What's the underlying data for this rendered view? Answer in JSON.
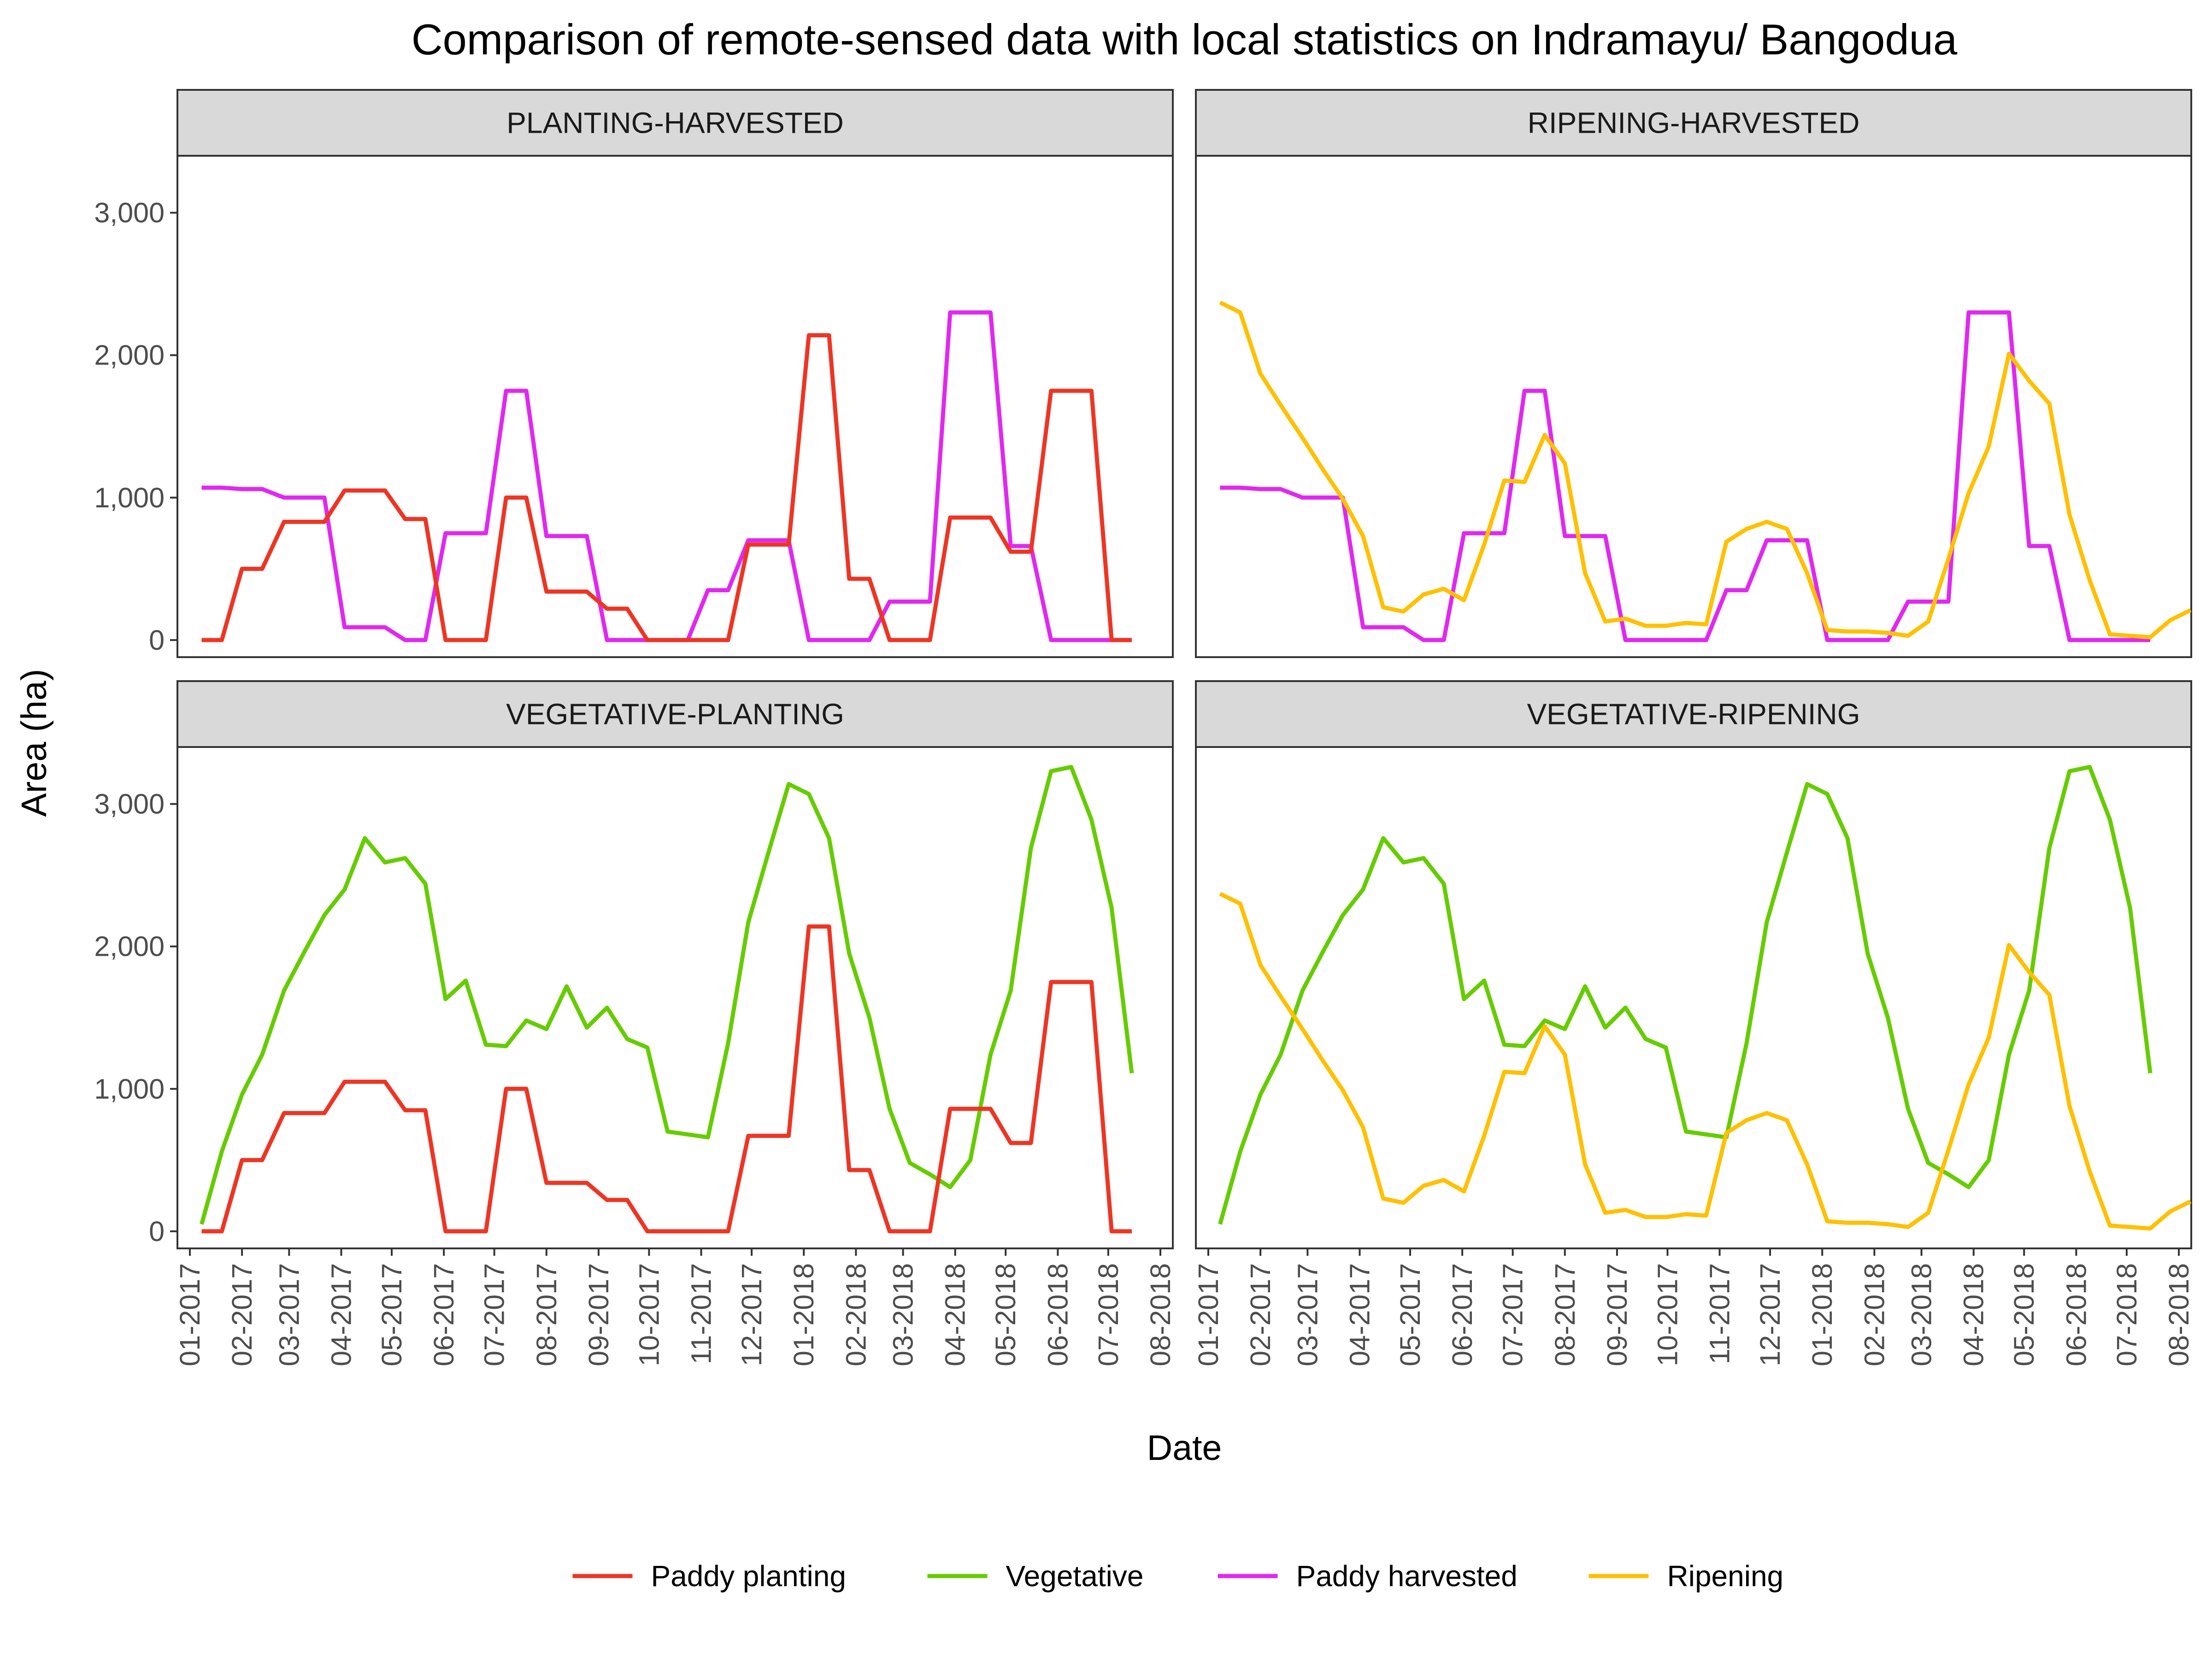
{
  "chart_data": {
    "type": "line",
    "title": "Comparison of remote-sensed data with local statistics on Indramayu/ Bangodua",
    "xlabel": "Date",
    "ylabel": "Area (ha)",
    "ylim": [
      -120,
      3400
    ],
    "yticks": [
      0,
      1000,
      2000,
      3000
    ],
    "ytick_labels": [
      "0",
      "1,000",
      "2,000",
      "3,000"
    ],
    "xticks": [
      "01-2017",
      "02-2017",
      "03-2017",
      "04-2017",
      "05-2017",
      "06-2017",
      "07-2017",
      "08-2017",
      "09-2017",
      "10-2017",
      "11-2017",
      "12-2017",
      "01-2018",
      "02-2018",
      "03-2018",
      "04-2018",
      "05-2018",
      "06-2018",
      "07-2018",
      "08-2018"
    ],
    "x_start": "2017-01-01",
    "x_end": "2018-08-01",
    "grid": false,
    "legend_position": "bottom",
    "colors": {
      "Paddy planting": "#ee3524",
      "Vegetative": "#66cc00",
      "Paddy harvested": "#e028f0",
      "Ripening": "#ffc000"
    },
    "legend": [
      "Paddy planting",
      "Vegetative",
      "Paddy harvested",
      "Ripening"
    ],
    "series_data": {
      "Paddy planting": [
        [
          "2017-01-08",
          0
        ],
        [
          "2017-01-20",
          0
        ],
        [
          "2017-02-01",
          500
        ],
        [
          "2017-02-13",
          500
        ],
        [
          "2017-02-26",
          830
        ],
        [
          "2017-03-10",
          830
        ],
        [
          "2017-03-22",
          830
        ],
        [
          "2017-04-03",
          1050
        ],
        [
          "2017-04-15",
          1050
        ],
        [
          "2017-04-27",
          1050
        ],
        [
          "2017-05-09",
          850
        ],
        [
          "2017-05-21",
          850
        ],
        [
          "2017-06-02",
          0
        ],
        [
          "2017-06-14",
          0
        ],
        [
          "2017-06-26",
          0
        ],
        [
          "2017-07-08",
          1000
        ],
        [
          "2017-07-20",
          1000
        ],
        [
          "2017-08-01",
          340
        ],
        [
          "2017-08-13",
          340
        ],
        [
          "2017-08-25",
          340
        ],
        [
          "2017-09-06",
          220
        ],
        [
          "2017-09-18",
          220
        ],
        [
          "2017-09-30",
          0
        ],
        [
          "2017-10-12",
          0
        ],
        [
          "2017-10-24",
          0
        ],
        [
          "2017-11-05",
          0
        ],
        [
          "2017-11-17",
          0
        ],
        [
          "2017-11-29",
          670
        ],
        [
          "2017-12-11",
          670
        ],
        [
          "2017-12-23",
          670
        ],
        [
          "2018-01-04",
          2140
        ],
        [
          "2018-01-16",
          2140
        ],
        [
          "2018-01-28",
          430
        ],
        [
          "2018-02-09",
          430
        ],
        [
          "2018-02-21",
          0
        ],
        [
          "2018-03-05",
          0
        ],
        [
          "2018-03-17",
          0
        ],
        [
          "2018-03-29",
          860
        ],
        [
          "2018-04-10",
          860
        ],
        [
          "2018-04-22",
          860
        ],
        [
          "2018-05-04",
          620
        ],
        [
          "2018-05-16",
          620
        ],
        [
          "2018-05-28",
          1750
        ],
        [
          "2018-06-09",
          1750
        ],
        [
          "2018-06-21",
          1750
        ],
        [
          "2018-07-03",
          0
        ],
        [
          "2018-07-15",
          0
        ]
      ],
      "Vegetative": [
        [
          "2017-01-08",
          50
        ],
        [
          "2017-01-20",
          560
        ],
        [
          "2017-02-01",
          960
        ],
        [
          "2017-02-13",
          1240
        ],
        [
          "2017-02-26",
          1690
        ],
        [
          "2017-03-10",
          1960
        ],
        [
          "2017-03-22",
          2220
        ],
        [
          "2017-04-03",
          2400
        ],
        [
          "2017-04-15",
          2760
        ],
        [
          "2017-04-27",
          2590
        ],
        [
          "2017-05-09",
          2620
        ],
        [
          "2017-05-21",
          2440
        ],
        [
          "2017-06-02",
          1630
        ],
        [
          "2017-06-14",
          1760
        ],
        [
          "2017-06-26",
          1310
        ],
        [
          "2017-07-08",
          1300
        ],
        [
          "2017-07-20",
          1480
        ],
        [
          "2017-08-01",
          1420
        ],
        [
          "2017-08-13",
          1720
        ],
        [
          "2017-08-25",
          1430
        ],
        [
          "2017-09-06",
          1570
        ],
        [
          "2017-09-18",
          1350
        ],
        [
          "2017-09-30",
          1290
        ],
        [
          "2017-10-12",
          700
        ],
        [
          "2017-10-24",
          680
        ],
        [
          "2017-11-05",
          660
        ],
        [
          "2017-11-17",
          1320
        ],
        [
          "2017-11-29",
          2170
        ],
        [
          "2017-12-11",
          2660
        ],
        [
          "2017-12-23",
          3140
        ],
        [
          "2018-01-04",
          3070
        ],
        [
          "2018-01-16",
          2760
        ],
        [
          "2018-01-28",
          1950
        ],
        [
          "2018-02-09",
          1500
        ],
        [
          "2018-02-21",
          860
        ],
        [
          "2018-03-05",
          480
        ],
        [
          "2018-03-17",
          400
        ],
        [
          "2018-03-29",
          310
        ],
        [
          "2018-04-10",
          500
        ],
        [
          "2018-04-22",
          1240
        ],
        [
          "2018-05-04",
          1690
        ],
        [
          "2018-05-16",
          2690
        ],
        [
          "2018-05-28",
          3230
        ],
        [
          "2018-06-09",
          3260
        ],
        [
          "2018-06-21",
          2890
        ],
        [
          "2018-07-03",
          2270
        ],
        [
          "2018-07-15",
          1110
        ]
      ],
      "Paddy harvested": [
        [
          "2017-01-08",
          1070
        ],
        [
          "2017-01-20",
          1070
        ],
        [
          "2017-02-01",
          1060
        ],
        [
          "2017-02-13",
          1060
        ],
        [
          "2017-02-26",
          1000
        ],
        [
          "2017-03-10",
          1000
        ],
        [
          "2017-03-22",
          1000
        ],
        [
          "2017-04-03",
          90
        ],
        [
          "2017-04-15",
          90
        ],
        [
          "2017-04-27",
          90
        ],
        [
          "2017-05-09",
          0
        ],
        [
          "2017-05-21",
          0
        ],
        [
          "2017-06-02",
          750
        ],
        [
          "2017-06-14",
          750
        ],
        [
          "2017-06-26",
          750
        ],
        [
          "2017-07-08",
          1750
        ],
        [
          "2017-07-20",
          1750
        ],
        [
          "2017-08-01",
          730
        ],
        [
          "2017-08-13",
          730
        ],
        [
          "2017-08-25",
          730
        ],
        [
          "2017-09-06",
          0
        ],
        [
          "2017-09-18",
          0
        ],
        [
          "2017-09-30",
          0
        ],
        [
          "2017-10-12",
          0
        ],
        [
          "2017-10-24",
          0
        ],
        [
          "2017-11-05",
          350
        ],
        [
          "2017-11-17",
          350
        ],
        [
          "2017-11-29",
          700
        ],
        [
          "2017-12-11",
          700
        ],
        [
          "2017-12-23",
          700
        ],
        [
          "2018-01-04",
          0
        ],
        [
          "2018-01-16",
          0
        ],
        [
          "2018-01-28",
          0
        ],
        [
          "2018-02-09",
          0
        ],
        [
          "2018-02-21",
          270
        ],
        [
          "2018-03-05",
          270
        ],
        [
          "2018-03-17",
          270
        ],
        [
          "2018-03-29",
          2300
        ],
        [
          "2018-04-10",
          2300
        ],
        [
          "2018-04-22",
          2300
        ],
        [
          "2018-05-04",
          660
        ],
        [
          "2018-05-16",
          660
        ],
        [
          "2018-05-28",
          0
        ],
        [
          "2018-06-09",
          0
        ],
        [
          "2018-06-21",
          0
        ],
        [
          "2018-07-03",
          0
        ],
        [
          "2018-07-15",
          0
        ]
      ],
      "Ripening": [
        [
          "2017-01-08",
          2370
        ],
        [
          "2017-01-20",
          2300
        ],
        [
          "2017-02-01",
          1870
        ],
        [
          "2017-02-13",
          1650
        ],
        [
          "2017-02-26",
          1420
        ],
        [
          "2017-03-10",
          1200
        ],
        [
          "2017-03-22",
          990
        ],
        [
          "2017-04-03",
          730
        ],
        [
          "2017-04-15",
          230
        ],
        [
          "2017-04-27",
          200
        ],
        [
          "2017-05-09",
          320
        ],
        [
          "2017-05-21",
          360
        ],
        [
          "2017-06-02",
          280
        ],
        [
          "2017-06-14",
          670
        ],
        [
          "2017-06-26",
          1120
        ],
        [
          "2017-07-08",
          1110
        ],
        [
          "2017-07-20",
          1440
        ],
        [
          "2017-08-01",
          1240
        ],
        [
          "2017-08-13",
          470
        ],
        [
          "2017-08-25",
          130
        ],
        [
          "2017-09-06",
          150
        ],
        [
          "2017-09-18",
          100
        ],
        [
          "2017-09-30",
          100
        ],
        [
          "2017-10-12",
          120
        ],
        [
          "2017-10-24",
          110
        ],
        [
          "2017-11-05",
          690
        ],
        [
          "2017-11-17",
          780
        ],
        [
          "2017-11-29",
          830
        ],
        [
          "2017-12-11",
          780
        ],
        [
          "2017-12-23",
          470
        ],
        [
          "2018-01-04",
          70
        ],
        [
          "2018-01-16",
          60
        ],
        [
          "2018-01-28",
          60
        ],
        [
          "2018-02-09",
          50
        ],
        [
          "2018-02-21",
          30
        ],
        [
          "2018-03-05",
          130
        ],
        [
          "2018-03-17",
          570
        ],
        [
          "2018-03-29",
          1030
        ],
        [
          "2018-04-10",
          1360
        ],
        [
          "2018-04-22",
          2010
        ],
        [
          "2018-05-04",
          1820
        ],
        [
          "2018-05-16",
          1660
        ],
        [
          "2018-05-28",
          880
        ],
        [
          "2018-06-09",
          420
        ],
        [
          "2018-06-21",
          40
        ],
        [
          "2018-07-03",
          30
        ],
        [
          "2018-07-15",
          20
        ],
        [
          "2018-07-27",
          140
        ],
        [
          "2018-08-08",
          210
        ]
      ]
    },
    "panels": [
      {
        "name": "PLANTING-HARVESTED",
        "series": [
          "Paddy harvested",
          "Paddy planting"
        ]
      },
      {
        "name": "RIPENING-HARVESTED",
        "series": [
          "Paddy harvested",
          "Ripening"
        ]
      },
      {
        "name": "VEGETATIVE-PLANTING",
        "series": [
          "Vegetative",
          "Paddy planting"
        ]
      },
      {
        "name": "VEGETATIVE-RIPENING",
        "series": [
          "Vegetative",
          "Ripening"
        ]
      }
    ]
  }
}
